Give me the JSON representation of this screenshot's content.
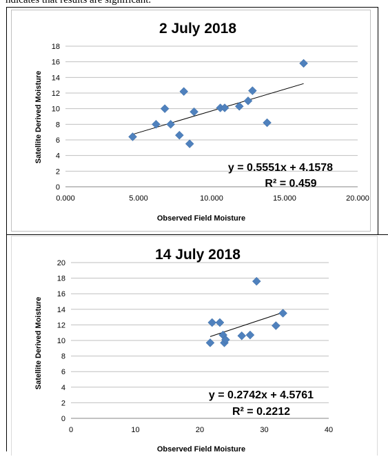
{
  "caption_fragment": "ndicates that results are significant.",
  "chart_data": [
    {
      "type": "scatter",
      "title": "2 July 2018",
      "xlabel": "Observed Field Moisture",
      "ylabel": "Satellite Derived Moisture",
      "xlim": [
        0,
        20
      ],
      "ylim": [
        0,
        18
      ],
      "xticks": [
        0,
        5,
        10,
        15,
        20
      ],
      "xtick_labels": [
        "0.000",
        "5.000",
        "10.000",
        "15.000",
        "20.000"
      ],
      "yticks": [
        0,
        2,
        4,
        6,
        8,
        10,
        12,
        14,
        16,
        18
      ],
      "ytick_labels": [
        "0",
        "2",
        "4",
        "6",
        "8",
        "10",
        "12",
        "14",
        "16",
        "18"
      ],
      "grid": "horizontal",
      "marker_color": "#4f81bd",
      "points": [
        {
          "x": 4.6,
          "y": 6.4
        },
        {
          "x": 6.2,
          "y": 8.0
        },
        {
          "x": 6.8,
          "y": 10.0
        },
        {
          "x": 7.2,
          "y": 8.0
        },
        {
          "x": 7.8,
          "y": 6.6
        },
        {
          "x": 8.1,
          "y": 12.2
        },
        {
          "x": 8.5,
          "y": 5.5
        },
        {
          "x": 8.8,
          "y": 9.6
        },
        {
          "x": 10.6,
          "y": 10.1
        },
        {
          "x": 10.9,
          "y": 10.1
        },
        {
          "x": 11.9,
          "y": 10.3
        },
        {
          "x": 12.5,
          "y": 11.0
        },
        {
          "x": 12.8,
          "y": 12.3
        },
        {
          "x": 13.8,
          "y": 8.2
        },
        {
          "x": 16.3,
          "y": 15.8
        }
      ],
      "trendline": {
        "slope": 0.5551,
        "intercept": 4.1578,
        "x_range": [
          4.6,
          16.3
        ]
      },
      "equation": "y = 0.5551x + 4.1578",
      "r_squared": "R² = 0.459"
    },
    {
      "type": "scatter",
      "title": "14 July 2018",
      "xlabel": "Observed Field Moisture",
      "ylabel": "Satellite Derived Moisture",
      "xlim": [
        0,
        40
      ],
      "ylim": [
        0,
        20
      ],
      "xticks": [
        0,
        10,
        20,
        30,
        40
      ],
      "xtick_labels": [
        "0",
        "10",
        "20",
        "30",
        "40"
      ],
      "yticks": [
        0,
        2,
        4,
        6,
        8,
        10,
        12,
        14,
        16,
        18,
        20
      ],
      "ytick_labels": [
        "0",
        "2",
        "4",
        "6",
        "8",
        "10",
        "12",
        "14",
        "16",
        "18",
        "20"
      ],
      "grid": "horizontal",
      "marker_color": "#4f81bd",
      "points": [
        {
          "x": 21.6,
          "y": 9.7
        },
        {
          "x": 21.9,
          "y": 12.3
        },
        {
          "x": 23.1,
          "y": 12.3
        },
        {
          "x": 23.6,
          "y": 10.7
        },
        {
          "x": 23.8,
          "y": 9.7
        },
        {
          "x": 24.0,
          "y": 10.1
        },
        {
          "x": 26.5,
          "y": 10.6
        },
        {
          "x": 27.8,
          "y": 10.7
        },
        {
          "x": 28.8,
          "y": 17.6
        },
        {
          "x": 31.8,
          "y": 11.9
        },
        {
          "x": 32.9,
          "y": 13.5
        }
      ],
      "trendline": {
        "slope": 0.2742,
        "intercept": 4.5761,
        "x_range": [
          21.6,
          32.9
        ]
      },
      "equation": "y = 0.2742x + 4.5761",
      "r_squared": "R² = 0.2212"
    }
  ]
}
